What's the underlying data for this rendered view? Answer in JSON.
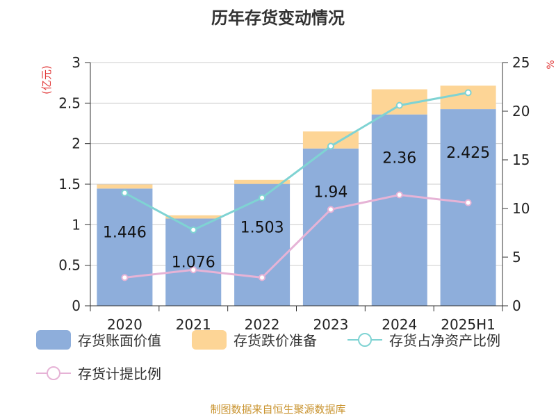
{
  "chart_data": {
    "type": "bar",
    "title": "历年存货变动情况",
    "categories": [
      "2020",
      "2021",
      "2022",
      "2023",
      "2024",
      "2025H1"
    ],
    "y_left": {
      "label": "(亿元)",
      "ylim": [
        0,
        3
      ],
      "ticks": [
        "0",
        "0.5",
        "1",
        "1.5",
        "2",
        "2.5",
        "3"
      ]
    },
    "y_right": {
      "label": "%",
      "ylim": [
        0,
        25
      ],
      "ticks": [
        "0",
        "5",
        "10",
        "15",
        "20",
        "25"
      ]
    },
    "grid": true,
    "series": [
      {
        "name": "存货账面价值",
        "kind": "bar",
        "axis": "left",
        "color": "#8eaedb",
        "values": [
          1.446,
          1.076,
          1.503,
          1.94,
          2.36,
          2.425
        ],
        "labels": [
          "1.446",
          "1.076",
          "1.503",
          "1.94",
          "2.36",
          "2.425"
        ]
      },
      {
        "name": "存货跌价准备",
        "kind": "bar",
        "axis": "left",
        "stacked": true,
        "color": "#fdd596",
        "values": [
          0.05,
          0.04,
          0.05,
          0.21,
          0.31,
          0.29
        ]
      },
      {
        "name": "存货占净资产比例",
        "kind": "line",
        "axis": "right",
        "color": "#7fd3d3",
        "values": [
          11.6,
          7.8,
          11.1,
          16.4,
          20.6,
          21.9
        ]
      },
      {
        "name": "存货计提比例",
        "kind": "line",
        "axis": "right",
        "color": "#e6b3d6",
        "values": [
          2.9,
          3.7,
          2.9,
          9.9,
          11.4,
          10.6
        ]
      }
    ],
    "legend_position": "bottom"
  },
  "source_text": "制图数据来自恒生聚源数据库"
}
